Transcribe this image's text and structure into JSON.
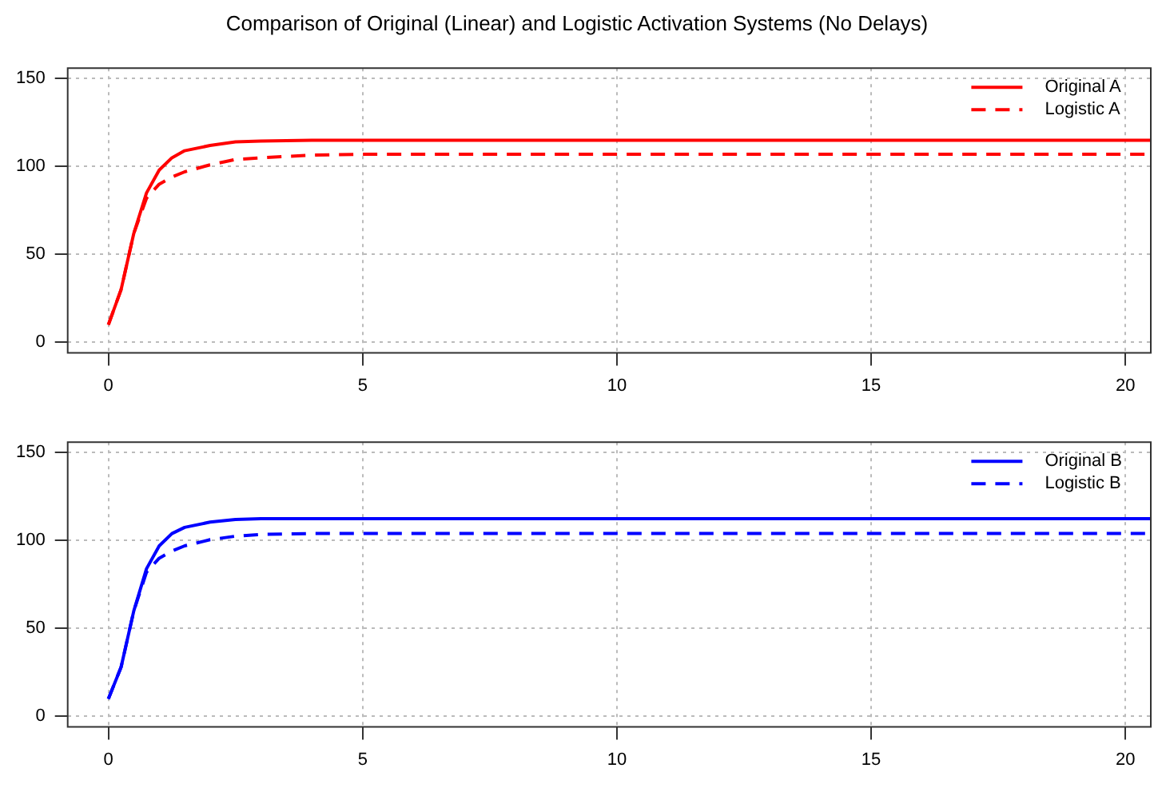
{
  "chart_data": [
    {
      "type": "line",
      "title": "Comparison of Original (Linear) and Logistic Activation Systems (No Delays)",
      "xlim": [
        -0.8,
        20.5
      ],
      "xticks": [
        0,
        5,
        10,
        15,
        20
      ],
      "ylim": [
        -6,
        156
      ],
      "yticks": [
        0,
        50,
        100,
        150
      ],
      "grid": true,
      "legend": "top right",
      "marker": "none",
      "series": [
        {
          "name": "Original A",
          "color": "#ff0000",
          "line_style": "solid",
          "x": [
            0,
            0.25,
            0.5,
            0.75,
            1,
            1.25,
            1.5,
            2,
            2.5,
            3,
            4,
            20.5
          ],
          "values": [
            10,
            30,
            62,
            85,
            98,
            105,
            109,
            112,
            114,
            114.5,
            115,
            115
          ]
        },
        {
          "name": "Logistic A",
          "color": "#ff0000",
          "line_style": "dashed",
          "x": [
            0,
            0.25,
            0.5,
            0.75,
            1,
            1.25,
            1.5,
            2,
            2.5,
            3,
            4,
            5,
            20.5
          ],
          "values": [
            10,
            30,
            62,
            82,
            90,
            94,
            97,
            101,
            104,
            105,
            106.5,
            107,
            107
          ]
        }
      ]
    },
    {
      "type": "line",
      "xlim": [
        -0.8,
        20.5
      ],
      "xticks": [
        0,
        5,
        10,
        15,
        20
      ],
      "ylim": [
        -6,
        156
      ],
      "yticks": [
        0,
        50,
        100,
        150
      ],
      "grid": true,
      "legend": "top right",
      "marker": "none",
      "series": [
        {
          "name": "Original B",
          "color": "#0000ff",
          "line_style": "solid",
          "x": [
            0,
            0.25,
            0.5,
            0.75,
            1,
            1.25,
            1.5,
            2,
            2.5,
            3,
            20.5
          ],
          "values": [
            10,
            28,
            60,
            84,
            97,
            104,
            107.5,
            110.5,
            112,
            112.5,
            112.5
          ]
        },
        {
          "name": "Logistic B",
          "color": "#0000ff",
          "line_style": "dashed",
          "x": [
            0,
            0.25,
            0.5,
            0.75,
            1,
            1.25,
            1.5,
            2,
            2.5,
            3,
            4,
            20.5
          ],
          "values": [
            10,
            28,
            60,
            82,
            90,
            94,
            97,
            100.5,
            102.5,
            103.5,
            104,
            104
          ]
        }
      ]
    }
  ]
}
